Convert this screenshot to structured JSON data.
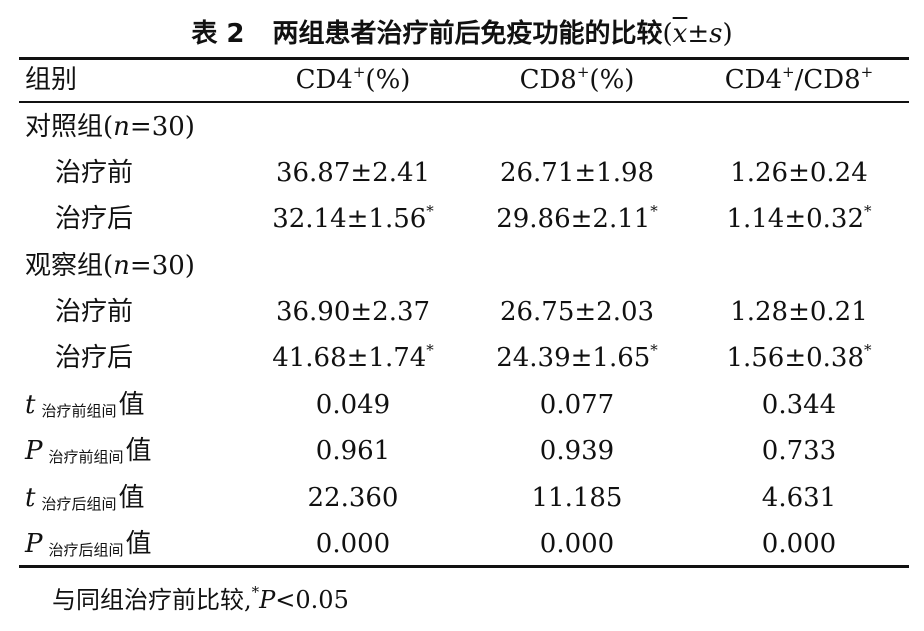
{
  "table": {
    "title": {
      "label": "表 2",
      "text": "两组患者治疗前后免疫功能的比较",
      "stat_open": "(",
      "stat_x": "x",
      "stat_pm": "±",
      "stat_s": "s",
      "stat_close": ")"
    },
    "headers": {
      "group": "组别",
      "cd4": "CD4",
      "cd4_sup": "+",
      "cd4_unit": "(%)",
      "cd8": "CD8",
      "cd8_sup": "+",
      "cd8_unit": "(%)",
      "ratio_a": "CD4",
      "ratio_a_sup": "+",
      "ratio_mid": "/CD8",
      "ratio_b_sup": "+"
    },
    "groups": [
      {
        "name": "对照组",
        "n_open": "(",
        "n_var": "n",
        "n_eq": "=30",
        "n_close": ")",
        "rows": [
          {
            "label": "治疗前",
            "cd4": "36.87±2.41",
            "cd4_mark": "",
            "cd8": "26.71±1.98",
            "cd8_mark": "",
            "ratio": "1.26±0.24",
            "ratio_mark": ""
          },
          {
            "label": "治疗后",
            "cd4": "32.14±1.56",
            "cd4_mark": "*",
            "cd8": "29.86±2.11",
            "cd8_mark": "*",
            "ratio": "1.14±0.32",
            "ratio_mark": "*"
          }
        ]
      },
      {
        "name": "观察组",
        "n_open": "(",
        "n_var": "n",
        "n_eq": "=30",
        "n_close": ")",
        "rows": [
          {
            "label": "治疗前",
            "cd4": "36.90±2.37",
            "cd4_mark": "",
            "cd8": "26.75±2.03",
            "cd8_mark": "",
            "ratio": "1.28±0.21",
            "ratio_mark": ""
          },
          {
            "label": "治疗后",
            "cd4": "41.68±1.74",
            "cd4_mark": "*",
            "cd8": "24.39±1.65",
            "cd8_mark": "*",
            "ratio": "1.56±0.38",
            "ratio_mark": "*"
          }
        ]
      }
    ],
    "stats": [
      {
        "symbol": "t",
        "sub": "治疗前组间",
        "suffix": "值",
        "cd4": "0.049",
        "cd8": "0.077",
        "ratio": "0.344"
      },
      {
        "symbol": "P",
        "sub": "治疗前组间",
        "suffix": "值",
        "cd4": "0.961",
        "cd8": "0.939",
        "ratio": "0.733"
      },
      {
        "symbol": "t",
        "sub": "治疗后组间",
        "suffix": "值",
        "cd4": "22.360",
        "cd8": "11.185",
        "ratio": "4.631"
      },
      {
        "symbol": "P",
        "sub": "治疗后组间",
        "suffix": "值",
        "cd4": "0.000",
        "cd8": "0.000",
        "ratio": "0.000"
      }
    ],
    "footnote": {
      "text": "与同组治疗前比较,",
      "mark": "*",
      "p": "P",
      "rest": "<0.05"
    }
  }
}
